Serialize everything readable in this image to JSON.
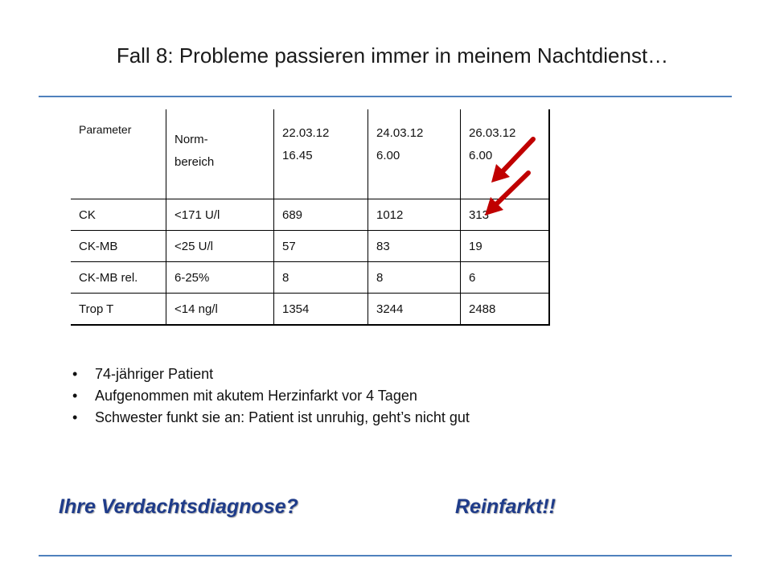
{
  "title": "Fall 8: Probleme passieren immer in meinem Nachtdienst…",
  "table": {
    "header": [
      {
        "line1": "Parameter",
        "line2": ""
      },
      {
        "line1": "Norm-",
        "line2": "bereich"
      },
      {
        "line1": "22.03.12",
        "line2": "16.45"
      },
      {
        "line1": "24.03.12",
        "line2": "6.00"
      },
      {
        "line1": "26.03.12",
        "line2": "6.00"
      }
    ],
    "rows": [
      [
        "CK",
        "<171 U/l",
        "689",
        "1012",
        "313"
      ],
      [
        "CK-MB",
        "<25 U/l",
        "57",
        "83",
        "19"
      ],
      [
        "CK-MB rel.",
        "6-25%",
        "8",
        "8",
        "6"
      ],
      [
        "Trop T",
        "<14 ng/l",
        "1354",
        "3244",
        "2488"
      ]
    ]
  },
  "bullets": [
    "74-jähriger Patient",
    "Aufgenommen mit akutem Herzinfarkt vor 4 Tagen",
    "Schwester funkt sie an: Patient ist unruhig, geht’s nicht gut"
  ],
  "bullet_glyph": "•",
  "question": "Ihre Verdachtsdiagnose?",
  "answer": "Reinfarkt!!",
  "colors": {
    "rule": "#4f81bd",
    "arrow": "#c00000",
    "bottom_text": "#1f3c8a"
  },
  "icons": {
    "arrow_ck": "red-arrow-icon",
    "arrow_ckmb": "red-arrow-icon"
  }
}
